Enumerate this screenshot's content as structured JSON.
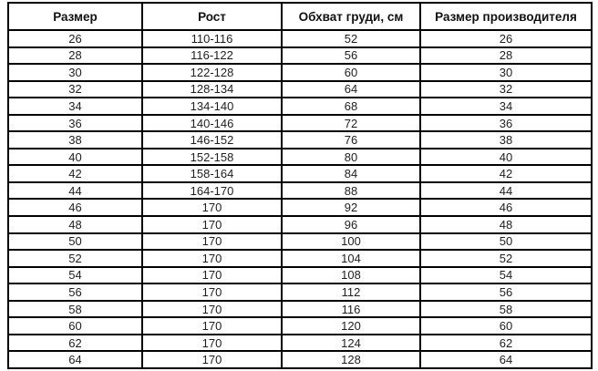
{
  "chart_data": {
    "type": "table",
    "title": "",
    "columns": [
      "Размер",
      "Рост",
      "Обхват груди, см",
      "Размер производителя"
    ],
    "rows": [
      [
        "26",
        "110-116",
        "52",
        "26"
      ],
      [
        "28",
        "116-122",
        "56",
        "28"
      ],
      [
        "30",
        "122-128",
        "60",
        "30"
      ],
      [
        "32",
        "128-134",
        "64",
        "32"
      ],
      [
        "34",
        "134-140",
        "68",
        "34"
      ],
      [
        "36",
        "140-146",
        "72",
        "36"
      ],
      [
        "38",
        "146-152",
        "76",
        "38"
      ],
      [
        "40",
        "152-158",
        "80",
        "40"
      ],
      [
        "42",
        "158-164",
        "84",
        "42"
      ],
      [
        "44",
        "164-170",
        "88",
        "44"
      ],
      [
        "46",
        "170",
        "92",
        "46"
      ],
      [
        "48",
        "170",
        "96",
        "48"
      ],
      [
        "50",
        "170",
        "100",
        "50"
      ],
      [
        "52",
        "170",
        "104",
        "52"
      ],
      [
        "54",
        "170",
        "108",
        "54"
      ],
      [
        "56",
        "170",
        "112",
        "56"
      ],
      [
        "58",
        "170",
        "116",
        "58"
      ],
      [
        "60",
        "170",
        "120",
        "60"
      ],
      [
        "62",
        "170",
        "124",
        "62"
      ],
      [
        "64",
        "170",
        "128",
        "64"
      ]
    ],
    "layout": {
      "grid": true,
      "header_bold": true,
      "cell_align": "center"
    },
    "colors": {
      "border": "#000000",
      "header_text": "#111111",
      "cell_text": "#1f1f1f",
      "background": "#ffffff"
    }
  }
}
